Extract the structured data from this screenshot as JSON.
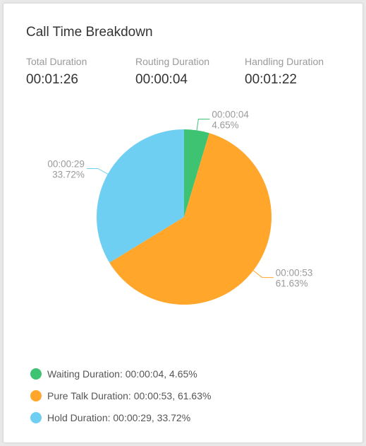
{
  "title": "Call Time Breakdown",
  "stats": [
    {
      "label": "Total Duration",
      "value": "00:01:26"
    },
    {
      "label": "Routing Duration",
      "value": "00:00:04"
    },
    {
      "label": "Handling Duration",
      "value": "00:01:22"
    }
  ],
  "chart_data": {
    "type": "pie",
    "slices": [
      {
        "name": "Waiting Duration",
        "time": "00:00:04",
        "percent": 4.65,
        "percent_label": "4.65%",
        "color": "#3ec373"
      },
      {
        "name": "Pure Talk Duration",
        "time": "00:00:53",
        "percent": 61.63,
        "percent_label": "61.63%",
        "color": "#ffa62b"
      },
      {
        "name": "Hold Duration",
        "time": "00:00:29",
        "percent": 33.72,
        "percent_label": "33.72%",
        "color": "#6fcff2"
      }
    ]
  },
  "legend": [
    {
      "text": "Waiting Duration: 00:00:04, 4.65%",
      "color": "#3ec373"
    },
    {
      "text": "Pure Talk Duration: 00:00:53, 61.63%",
      "color": "#ffa62b"
    },
    {
      "text": "Hold Duration: 00:00:29, 33.72%",
      "color": "#6fcff2"
    }
  ]
}
